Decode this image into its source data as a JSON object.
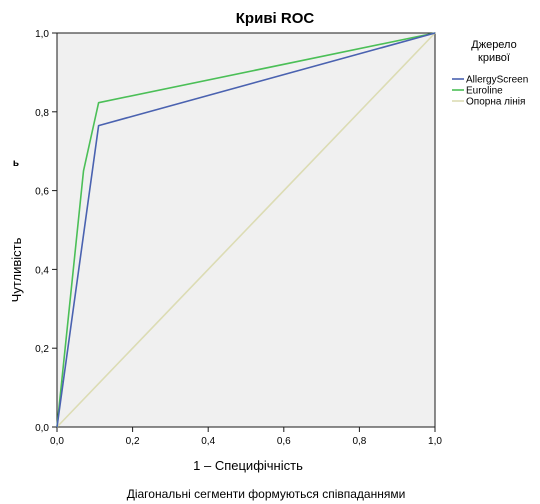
{
  "chart_data": {
    "type": "line",
    "title": "Криві ROC",
    "xlabel": "1 – Специфічність",
    "ylabel": "Чутливість",
    "xlim": [
      0,
      1
    ],
    "ylim": [
      0,
      1
    ],
    "x_ticks": [
      "0,0",
      "0,2",
      "0,4",
      "0,6",
      "0,8",
      "1,0"
    ],
    "y_ticks": [
      "0,0",
      "0,2",
      "0,4",
      "0,6",
      "0,8",
      "1,0"
    ],
    "grid": false,
    "legend_title": "Джерело кривої",
    "legend_title_lines": [
      "Джерело",
      "кривої"
    ],
    "legend_position": "right",
    "series": [
      {
        "name": "AllergyScreen",
        "color": "#4a62b0",
        "x": [
          0,
          0.11,
          1
        ],
        "y": [
          0,
          0.765,
          1
        ]
      },
      {
        "name": "Euroline",
        "color": "#4bbf57",
        "x": [
          0,
          0.07,
          0.11,
          1
        ],
        "y": [
          0,
          0.65,
          0.823,
          1
        ]
      },
      {
        "name": "Опорна лінія",
        "color": "#dcdcb4",
        "x": [
          0,
          1
        ],
        "y": [
          0,
          1
        ]
      }
    ],
    "footnote": "Діагональні сегменти формуються співпаданнями",
    "stray_mark": "ь",
    "colors": {
      "plot_background": "#f0f0f0",
      "axis": "#1a1a1a"
    }
  }
}
